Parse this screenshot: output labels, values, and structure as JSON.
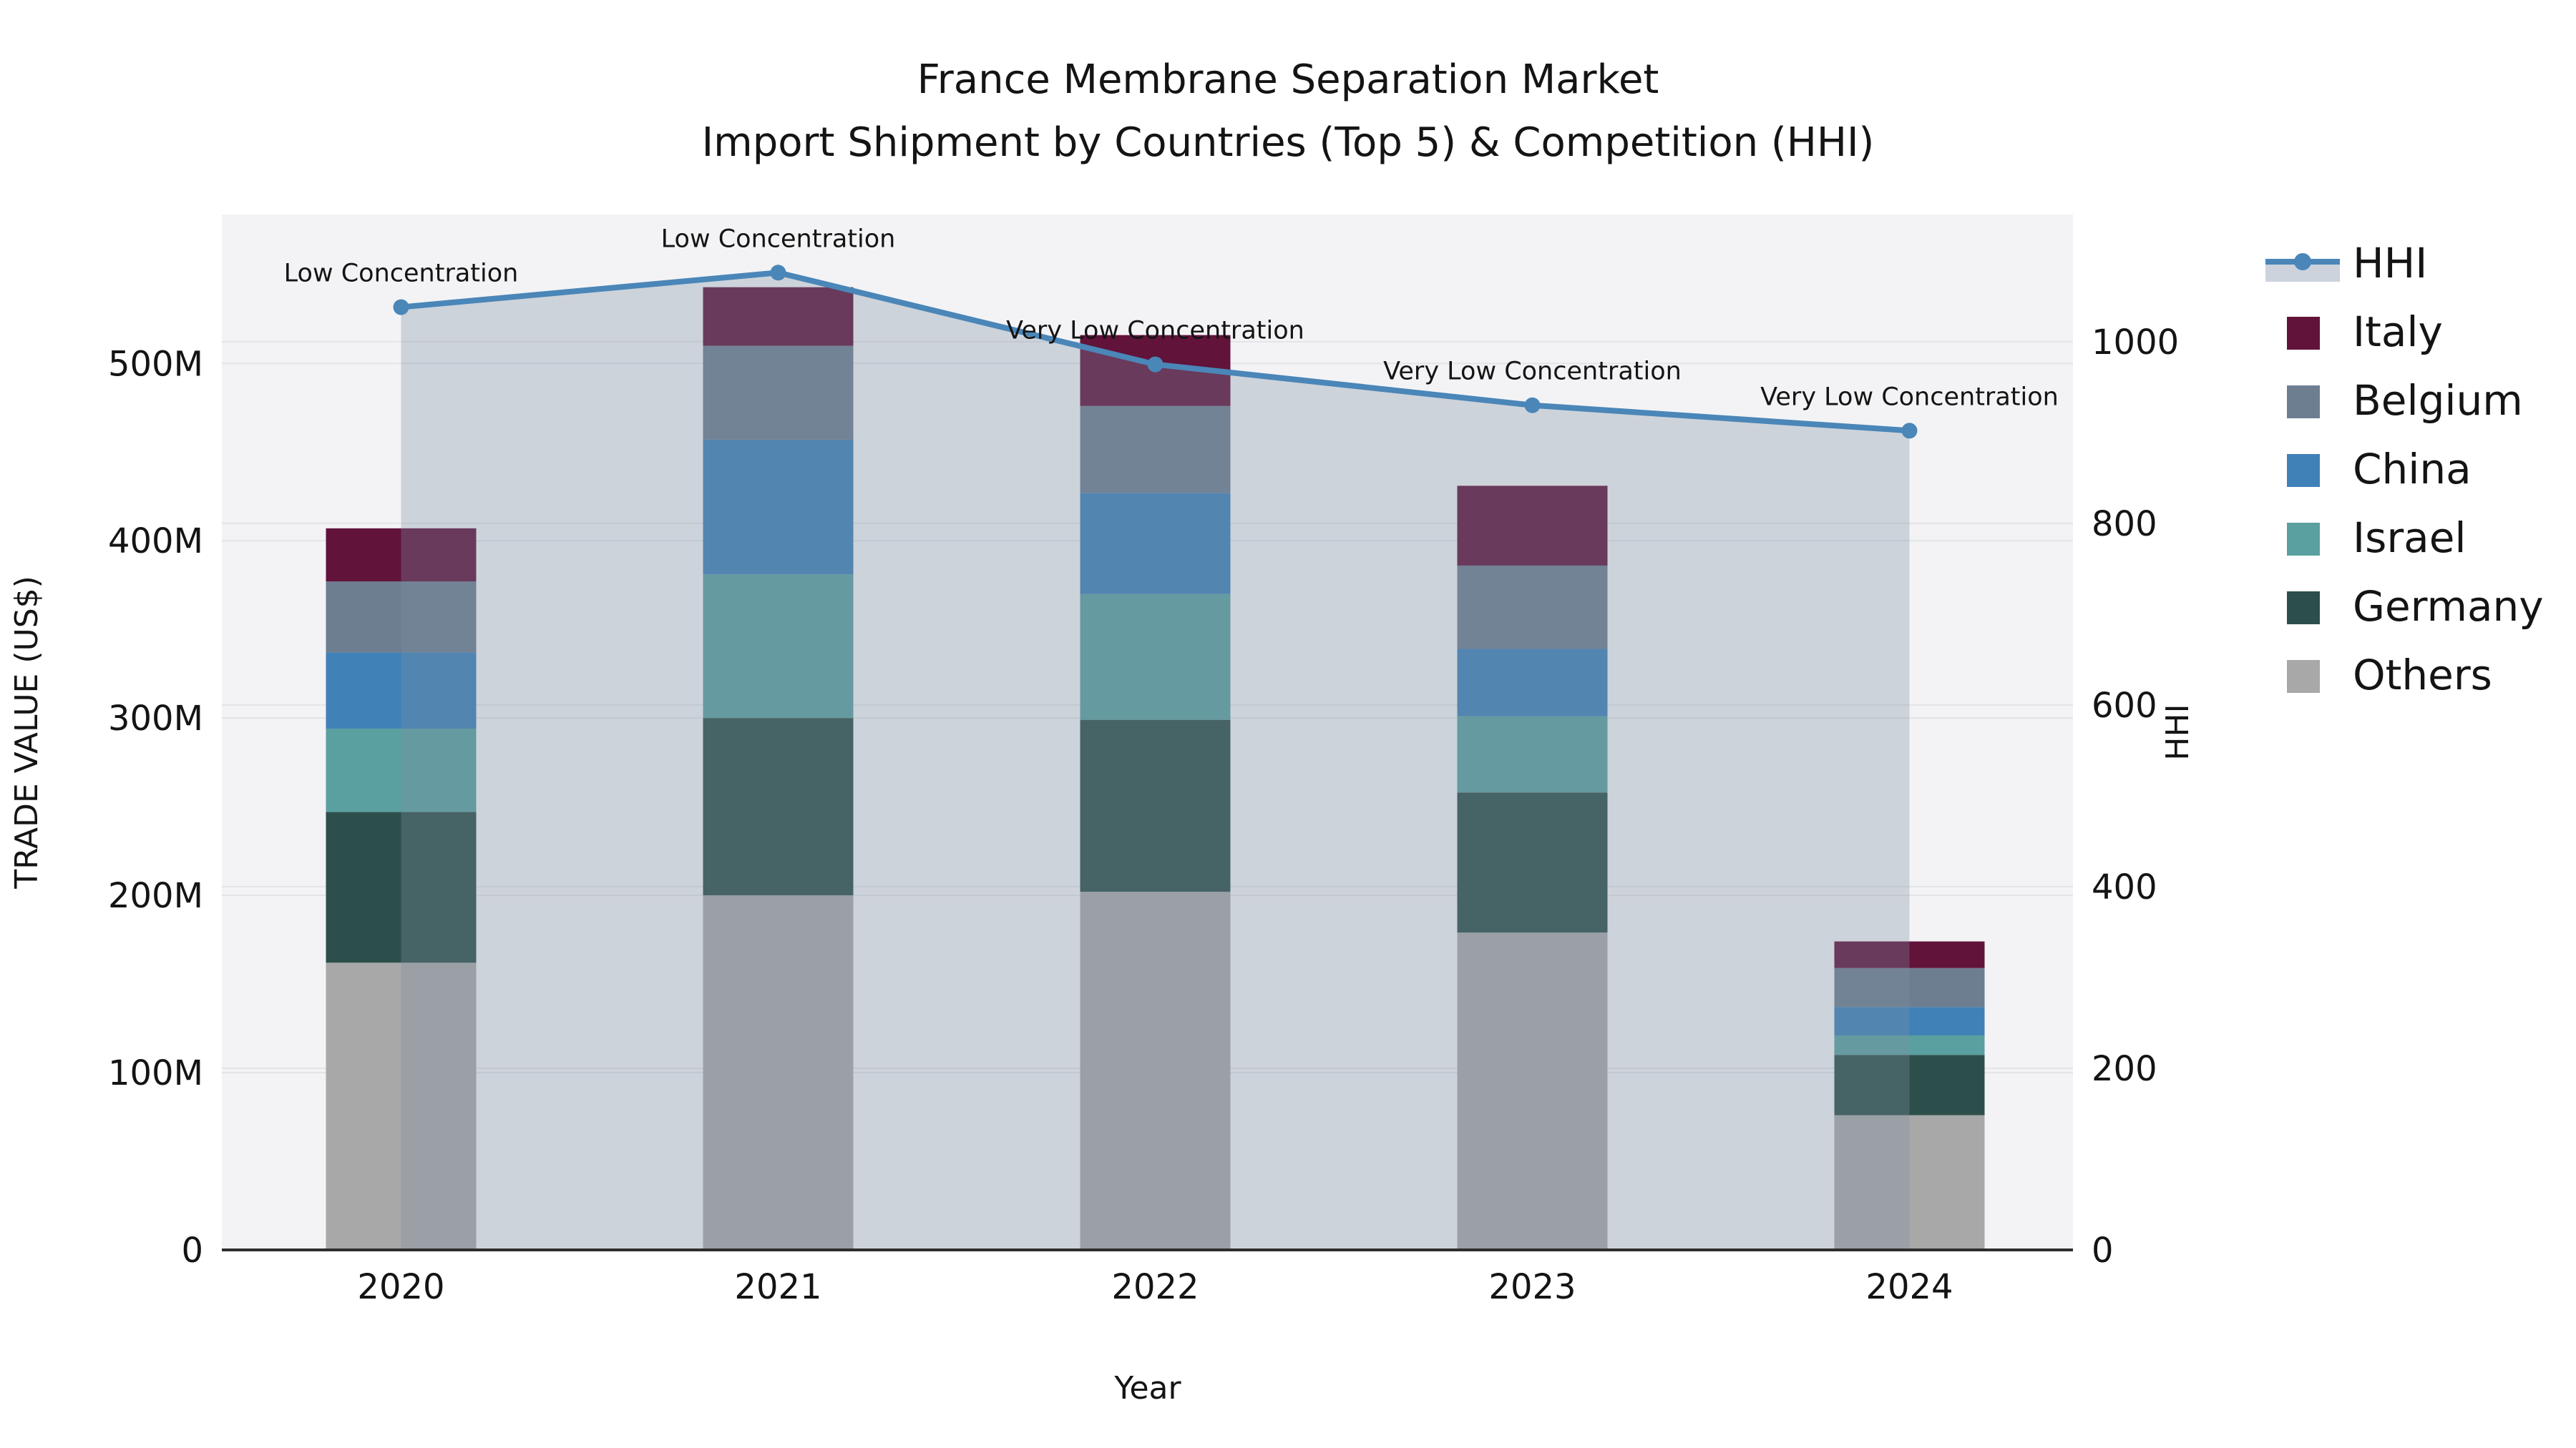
{
  "chart_data": {
    "type": "combo_stacked_bar_line",
    "title_line1": "France Membrane Separation Market",
    "title_line2": "Import Shipment by Countries (Top 5) & Competition (HHI)",
    "xlabel": "Year",
    "ylabel_left": "TRADE VALUE (US$)",
    "ylabel_right": "HHI",
    "categories": [
      "2020",
      "2021",
      "2022",
      "2023",
      "2024"
    ],
    "value_unit": "M US$",
    "stack_order_bottom_to_top": [
      "Others",
      "Germany",
      "Israel",
      "China",
      "Belgium",
      "Italy"
    ],
    "series": [
      {
        "name": "Others",
        "color": "#a8a8a8",
        "values_musd": [
          162,
          200,
          202,
          179,
          76
        ]
      },
      {
        "name": "Germany",
        "color": "#2d4f4b",
        "values_musd": [
          85,
          100,
          97,
          79,
          34
        ]
      },
      {
        "name": "Israel",
        "color": "#5aa0a0",
        "values_musd": [
          47,
          81,
          71,
          43,
          11
        ]
      },
      {
        "name": "China",
        "color": "#4081b8",
        "values_musd": [
          43,
          76,
          57,
          38,
          16
        ]
      },
      {
        "name": "Belgium",
        "color": "#6d7e90",
        "values_musd": [
          40,
          53,
          49,
          47,
          22
        ]
      },
      {
        "name": "Italy",
        "color": "#61133a",
        "values_musd": [
          30,
          33,
          40,
          45,
          15
        ]
      }
    ],
    "bar_totals_musd": [
      407,
      543,
      516,
      431,
      174
    ],
    "line_series": {
      "name": "HHI",
      "color": "#4a86b8",
      "values": [
        1038,
        1076,
        975,
        930,
        902
      ],
      "area_overlay_color": "rgba(124,143,162,0.32)",
      "legend_band_color": "#ccd3dd"
    },
    "annotations": [
      {
        "category": "2020",
        "text": "Low Concentration"
      },
      {
        "category": "2021",
        "text": "Low Concentration"
      },
      {
        "category": "2022",
        "text": "Very Low Concentration"
      },
      {
        "category": "2023",
        "text": "Very Low Concentration"
      },
      {
        "category": "2024",
        "text": "Very Low Concentration"
      }
    ],
    "axis_left": {
      "ticks": [
        0,
        100,
        200,
        300,
        400,
        500
      ],
      "tick_labels": [
        "0",
        "100M",
        "200M",
        "300M",
        "400M",
        "500M"
      ],
      "max_musd": 584
    },
    "axis_right": {
      "ticks": [
        0,
        200,
        400,
        600,
        800,
        1000
      ],
      "tick_labels": [
        "0",
        "200",
        "400",
        "600",
        "800",
        "1000"
      ],
      "max": 1140
    },
    "legend": {
      "entries": [
        "HHI",
        "Italy",
        "Belgium",
        "China",
        "Israel",
        "Germany",
        "Others"
      ],
      "position": "right-top-outside"
    },
    "grid": "horizontal-both-axes",
    "colors": {
      "plot_background": "#f3f3f5",
      "gridline": "#e2e4e7",
      "bottom_spine": "#2e2e2e",
      "text": "#141414"
    }
  }
}
